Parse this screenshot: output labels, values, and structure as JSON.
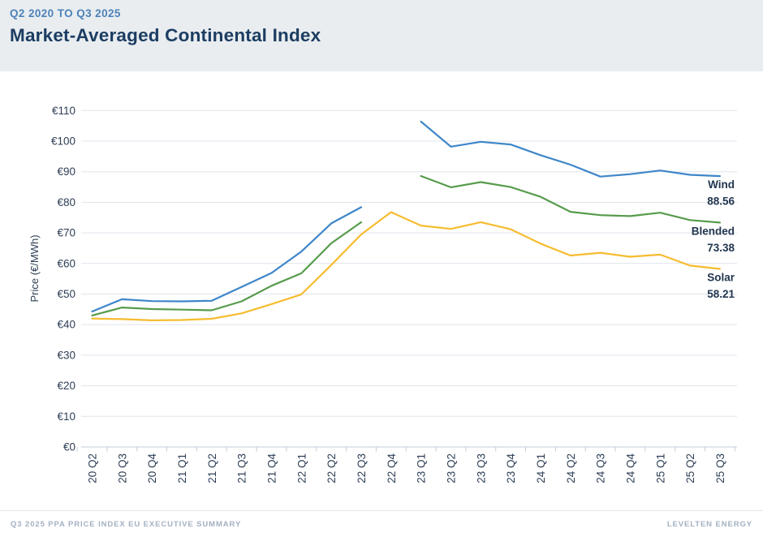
{
  "header": {
    "subtitle": "Q2 2020 TO Q3 2025",
    "title": "Market-Averaged Continental Index"
  },
  "footer": {
    "left": "Q3 2025 PPA PRICE INDEX EU EXECUTIVE SUMMARY",
    "right": "LEVELTEN ENERGY"
  },
  "colors": {
    "wind": "#3e86c9",
    "blended": "#579b4c",
    "solar": "#f6bc2f",
    "subtitle_text": "#4d82b8",
    "title_text": "#1c3d62",
    "axis_text": "#2d3e55",
    "series_label_text": "#223650",
    "gridline": "#dfe5ec",
    "axis_line": "#c3cdd9",
    "header_bg": "#e9edf0",
    "footer_text": "#a3b1c2"
  },
  "chart_data": {
    "type": "line",
    "title": "Market-Averaged Continental Index",
    "subtitle": "Q2 2020 TO Q3 2025",
    "xlabel": "",
    "ylabel": "Price (€/MWh)",
    "ylim": [
      0,
      110
    ],
    "y_tick_step": 10,
    "y_ticks": [
      "€0",
      "€10",
      "€20",
      "€30",
      "€40",
      "€50",
      "€60",
      "€70",
      "€80",
      "€90",
      "€100",
      "€110"
    ],
    "grid": true,
    "legend_position": "end-of-line-labels",
    "categories": [
      "20 Q2",
      "20 Q3",
      "20 Q4",
      "21 Q1",
      "21 Q2",
      "21 Q3",
      "21 Q4",
      "22 Q1",
      "22 Q2",
      "22 Q3",
      "22 Q4",
      "23 Q1",
      "23 Q2",
      "23 Q3",
      "23 Q4",
      "24 Q1",
      "24 Q2",
      "24 Q3",
      "24 Q4",
      "25 Q1",
      "25 Q2",
      "25 Q3"
    ],
    "series": [
      {
        "name": "Wind",
        "end_label": "88.56",
        "color_key": "wind",
        "values": [
          44.3,
          48.3,
          47.7,
          47.6,
          47.8,
          52.3,
          56.9,
          63.9,
          73.1,
          78.4,
          null,
          106.4,
          98.2,
          99.8,
          98.9,
          95.4,
          92.3,
          88.4,
          89.2,
          90.4,
          89.0,
          88.56
        ]
      },
      {
        "name": "Blended",
        "end_label": "73.38",
        "color_key": "blended",
        "values": [
          43.0,
          45.6,
          45.1,
          44.9,
          44.7,
          47.6,
          52.7,
          56.8,
          66.6,
          73.5,
          null,
          88.6,
          84.9,
          86.6,
          85.0,
          81.8,
          76.9,
          75.8,
          75.5,
          76.6,
          74.2,
          73.38
        ]
      },
      {
        "name": "Solar",
        "end_label": "58.21",
        "color_key": "solar",
        "values": [
          42.0,
          41.8,
          41.4,
          41.5,
          41.9,
          43.7,
          46.7,
          49.9,
          59.5,
          69.5,
          76.8,
          72.4,
          71.3,
          73.5,
          71.2,
          66.5,
          62.6,
          63.5,
          62.2,
          62.9,
          59.3,
          58.21
        ]
      }
    ]
  }
}
